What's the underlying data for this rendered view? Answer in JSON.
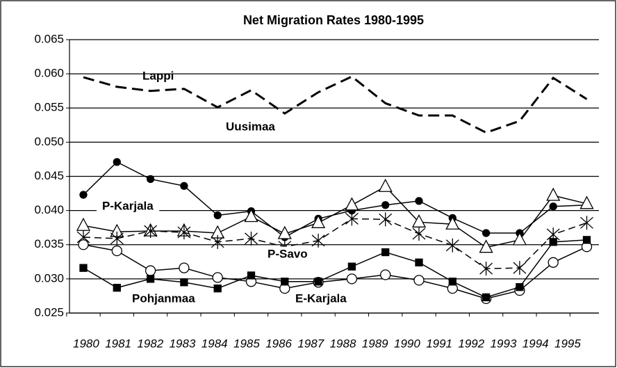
{
  "chart_data": {
    "type": "line",
    "title": "Net Migration Rates 1980-1995",
    "categories": [
      "1980",
      "1981",
      "1982",
      "1983",
      "1984",
      "1985",
      "1986",
      "1987",
      "1988",
      "1989",
      "1990",
      "1991",
      "1992",
      "1993",
      "1994",
      "1995"
    ],
    "ylim": [
      0.025,
      0.065
    ],
    "yticks": [
      0.025,
      {
        "value": 0.03,
        "label": "0.030"
      },
      0.035,
      {
        "value": 0.04,
        "label": "0.040"
      },
      0.045,
      {
        "value": 0.05,
        "label": "0.050"
      },
      0.055,
      {
        "value": 0.06,
        "label": "0.060"
      },
      0.065
    ],
    "grid": true,
    "series": [
      {
        "name": "Uusimaa",
        "color": "#000000",
        "marker": "none",
        "dash": "long",
        "values": [
          0.0595,
          0.0581,
          0.0575,
          0.0578,
          0.0551,
          0.0576,
          0.0542,
          0.0573,
          0.0596,
          0.0557,
          0.0539,
          0.0539,
          0.0514,
          0.0531,
          0.0594,
          0.0563
        ]
      },
      {
        "name": "Lappi",
        "color": "#000000",
        "marker": "circle-filled",
        "dash": "solid",
        "values": [
          0.0423,
          0.0471,
          0.0446,
          0.0436,
          0.0393,
          0.0399,
          0.0361,
          0.0388,
          0.04,
          0.0408,
          0.0414,
          0.0389,
          0.0367,
          0.0367,
          0.0406,
          0.0408
        ]
      },
      {
        "name": "P-Karjala",
        "color": "#000000",
        "marker": "triangle",
        "dash": "solid",
        "values": [
          0.0378,
          0.0369,
          0.037,
          0.037,
          0.0367,
          0.0391,
          0.0366,
          0.0382,
          0.0408,
          0.0435,
          0.0383,
          0.038,
          0.0346,
          0.0357,
          0.0422,
          0.041
        ]
      },
      {
        "name": "P-Savo",
        "color": "#000000",
        "marker": "asterisk",
        "dash": "short",
        "values": [
          0.0361,
          0.0359,
          0.037,
          0.0368,
          0.0354,
          0.0359,
          0.0347,
          0.0356,
          0.0388,
          0.0387,
          0.0366,
          0.0349,
          0.0315,
          0.0316,
          0.0365,
          0.0382
        ]
      },
      {
        "name": "Pohjanmaa",
        "color": "#000000",
        "marker": "circle",
        "dash": "solid",
        "values": [
          0.035,
          0.0341,
          0.0312,
          0.0316,
          0.0302,
          0.0296,
          0.0286,
          0.0295,
          0.03,
          0.0306,
          0.0298,
          0.0286,
          0.0271,
          0.0283,
          0.0324,
          0.0347
        ]
      },
      {
        "name": "E-Karjala",
        "color": "#000000",
        "marker": "square",
        "dash": "solid",
        "values": [
          0.0316,
          0.0287,
          0.03,
          0.0295,
          0.0286,
          0.0305,
          0.0296,
          0.0296,
          0.0318,
          0.0339,
          0.0324,
          0.0296,
          0.0273,
          0.0288,
          0.0354,
          0.0357
        ]
      }
    ]
  }
}
